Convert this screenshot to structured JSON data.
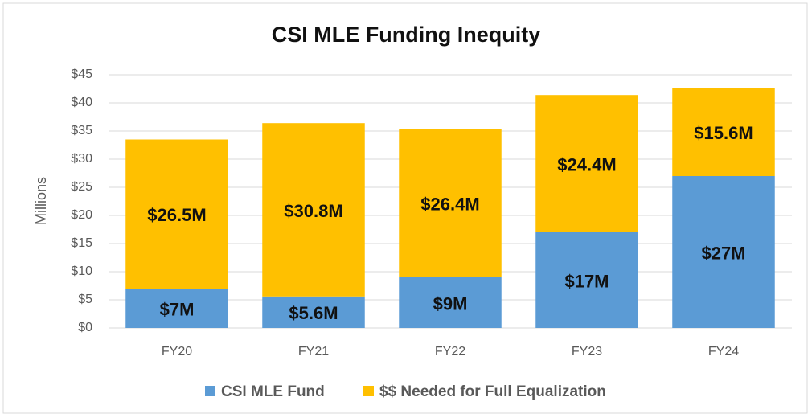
{
  "chart_data": {
    "type": "stacked_bar",
    "title": "CSI MLE Funding Inequity",
    "y_label": "Millions",
    "categories": [
      "FY20",
      "FY21",
      "FY22",
      "FY23",
      "FY24"
    ],
    "series": [
      {
        "name": "CSI MLE Fund",
        "color": "#5b9bd5",
        "values": [
          7,
          5.6,
          9,
          17,
          27
        ],
        "value_labels": [
          "$7M",
          "$5.6M",
          "$9M",
          "$17M",
          "$27M"
        ]
      },
      {
        "name": "$$ Needed for Full Equalization",
        "color": "#ffc000",
        "values": [
          26.5,
          30.8,
          26.4,
          24.4,
          15.6
        ],
        "value_labels": [
          "$26.5M",
          "$30.8M",
          "$26.4M",
          "$24.4M",
          "$15.6M"
        ]
      }
    ],
    "ylim": [
      0,
      45
    ],
    "yticks": [
      {
        "value": 0,
        "label": "$0"
      },
      {
        "value": 5,
        "label": "$5"
      },
      {
        "value": 10,
        "label": "$10"
      },
      {
        "value": 15,
        "label": "$15"
      },
      {
        "value": 20,
        "label": "$20"
      },
      {
        "value": 25,
        "label": "$25"
      },
      {
        "value": 30,
        "label": "$30"
      },
      {
        "value": 35,
        "label": "$35"
      },
      {
        "value": 40,
        "label": "$40"
      },
      {
        "value": 45,
        "label": "$45"
      }
    ],
    "grid": true,
    "legend": "bottom"
  }
}
